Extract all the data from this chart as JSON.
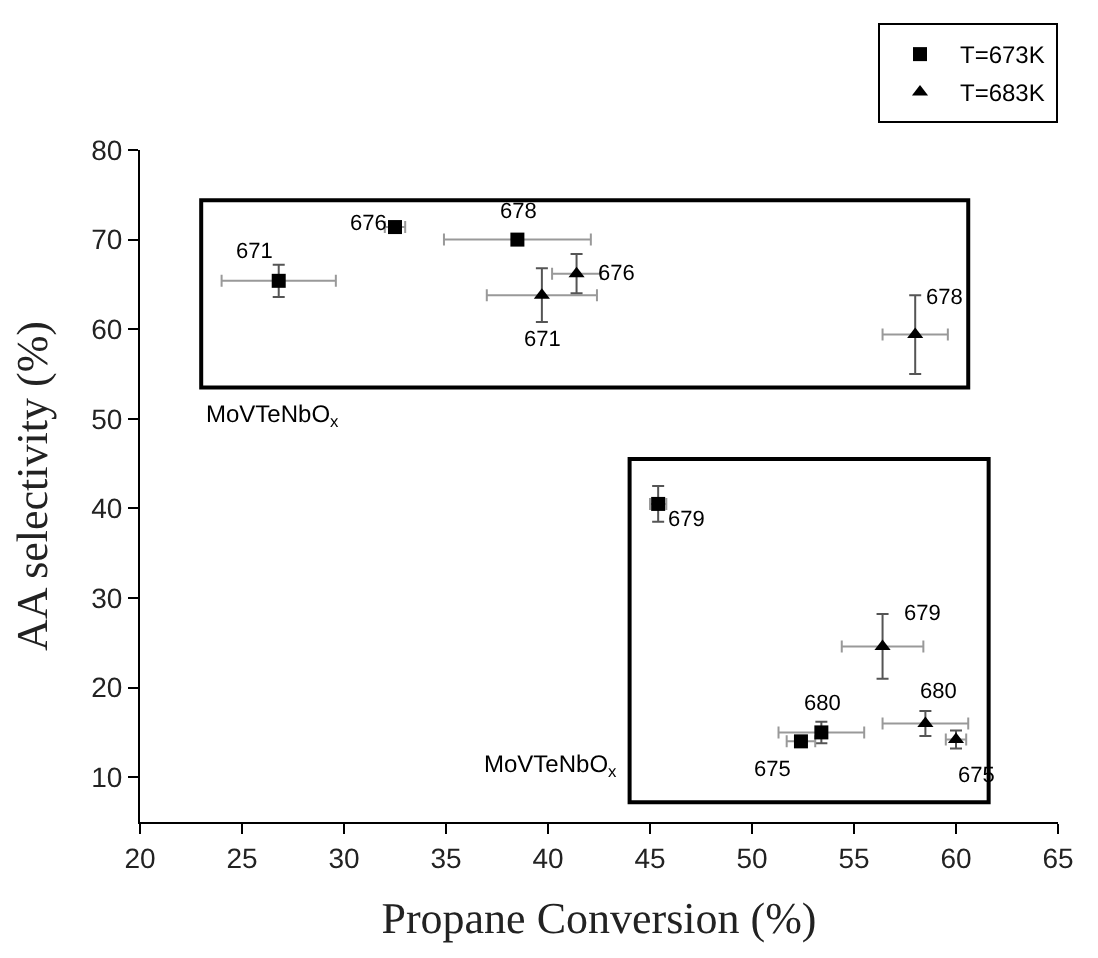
{
  "chart_data": {
    "type": "scatter",
    "xlabel": "Propane Conversion (%)",
    "ylabel": "AA selectivity (%)",
    "xlim": [
      20,
      65
    ],
    "xticks": [
      20,
      25,
      30,
      35,
      40,
      45,
      50,
      55,
      60,
      65
    ],
    "ylim": [
      5,
      80
    ],
    "yticks": [
      10,
      20,
      30,
      40,
      50,
      60,
      70,
      80
    ],
    "grid": false,
    "legend": "top right",
    "series": [
      {
        "name": "T=673K",
        "color": "#000000",
        "marker": "square",
        "x": [
          26.8,
          32.5,
          38.5,
          45.4,
          53.4,
          52.4
        ],
        "values": [
          65.4,
          71.4,
          70.0,
          40.5,
          15.0,
          14.0
        ],
        "errors": [
          1.8,
          null,
          null,
          2.0,
          1.2,
          null
        ],
        "xerrors": [
          2.8,
          0.5,
          3.6,
          0.4,
          2.1,
          0.7
        ]
      },
      {
        "name": "T=683K",
        "color": "#000000",
        "marker": "triangle",
        "x": [
          39.7,
          41.4,
          58.0,
          56.4,
          58.5,
          60.0
        ],
        "values": [
          63.8,
          66.2,
          59.4,
          24.6,
          16.0,
          14.2
        ],
        "errors": [
          3.0,
          2.2,
          4.4,
          3.6,
          1.4,
          1.0
        ],
        "xerrors": [
          2.7,
          1.2,
          1.6,
          2.0,
          2.1,
          0.5
        ]
      }
    ],
    "annotations": [
      {
        "text": "671",
        "x": 26.8,
        "y": 65.4
      },
      {
        "text": "676",
        "x": 32.5,
        "y": 71.4
      },
      {
        "text": "678",
        "x": 38.5,
        "y": 70.0
      },
      {
        "text": "671",
        "x": 39.7,
        "y": 63.8
      },
      {
        "text": "676",
        "x": 41.4,
        "y": 66.2
      },
      {
        "text": "678",
        "x": 58.0,
        "y": 59.4
      },
      {
        "text": "679",
        "x": 45.4,
        "y": 40.5
      },
      {
        "text": "680",
        "x": 53.4,
        "y": 15.0
      },
      {
        "text": "675",
        "x": 52.4,
        "y": 14.0
      },
      {
        "text": "679",
        "x": 56.4,
        "y": 24.6
      },
      {
        "text": "680",
        "x": 58.5,
        "y": 16.0
      },
      {
        "text": "675",
        "x": 60.0,
        "y": 14.2
      },
      "MoVTeNbO$_{x}$",
      "MoVTeNbO$_{x}$"
    ]
  }
}
